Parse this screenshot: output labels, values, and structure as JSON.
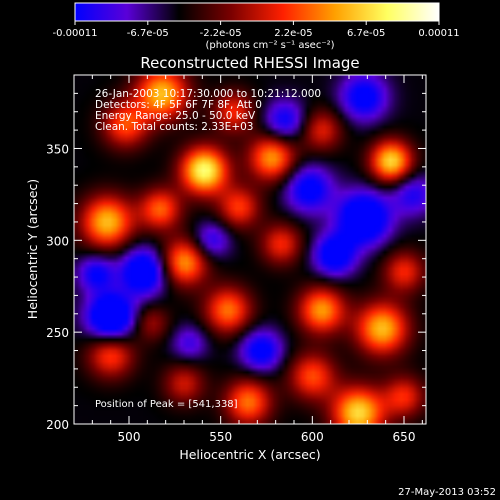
{
  "chart_data": {
    "type": "heatmap",
    "title": "Reconstructed RHESSI Image",
    "xlabel": "Heliocentric X (arcsec)",
    "ylabel": "Heliocentric Y (arcsec)",
    "xlim": [
      470,
      662
    ],
    "ylim": [
      200,
      390
    ],
    "xticks": [
      500,
      550,
      600,
      650
    ],
    "yticks": [
      200,
      250,
      300,
      350
    ],
    "colorbar": {
      "range": [
        -0.00011,
        0.00011
      ],
      "ticks": [
        "-0.00011",
        "-6.7e-05",
        "-2.2e-05",
        "2.2e-05",
        "6.7e-05",
        "0.00011"
      ],
      "units": "(photons cm⁻² s⁻¹ asec⁻²)",
      "colormap": [
        "#0000ff",
        "#5a00d8",
        "#000000",
        "#7a0000",
        "#ff2000",
        "#ffa000",
        "#ffff60",
        "#ffffff"
      ]
    },
    "annotations": [
      "26-Jan-2003 10:17:30.000 to 10:21:12.000",
      "Detectors: 4F 5F 6F 7F 8F, Att 0",
      "Energy Range: 25.0 - 50.0 keV",
      "Clean. Total counts: 2.33E+03"
    ],
    "peak_label": "Position of Peak = [541,338]",
    "sources": [
      {
        "x": 541,
        "y": 338,
        "a": 1.25,
        "s": 9
      },
      {
        "x": 518,
        "y": 380,
        "a": 1.0,
        "s": 10
      },
      {
        "x": 498,
        "y": 363,
        "a": 0.7,
        "s": 9
      },
      {
        "x": 557,
        "y": 370,
        "a": 0.6,
        "s": 8
      },
      {
        "x": 578,
        "y": 345,
        "a": 0.9,
        "s": 9
      },
      {
        "x": 605,
        "y": 360,
        "a": 0.55,
        "s": 8
      },
      {
        "x": 643,
        "y": 343,
        "a": 1.1,
        "s": 8
      },
      {
        "x": 488,
        "y": 310,
        "a": 1.0,
        "s": 10
      },
      {
        "x": 517,
        "y": 317,
        "a": 0.75,
        "s": 8
      },
      {
        "x": 560,
        "y": 318,
        "a": 0.65,
        "s": 8
      },
      {
        "x": 530,
        "y": 288,
        "a": 0.9,
        "s": 9
      },
      {
        "x": 583,
        "y": 298,
        "a": 0.6,
        "s": 8
      },
      {
        "x": 554,
        "y": 262,
        "a": 0.8,
        "s": 9
      },
      {
        "x": 605,
        "y": 262,
        "a": 0.9,
        "s": 9
      },
      {
        "x": 638,
        "y": 252,
        "a": 1.0,
        "s": 10
      },
      {
        "x": 650,
        "y": 283,
        "a": 0.6,
        "s": 8
      },
      {
        "x": 490,
        "y": 238,
        "a": 0.7,
        "s": 9
      },
      {
        "x": 600,
        "y": 226,
        "a": 0.7,
        "s": 9
      },
      {
        "x": 625,
        "y": 206,
        "a": 1.1,
        "s": 10
      },
      {
        "x": 565,
        "y": 212,
        "a": 0.8,
        "s": 9
      },
      {
        "x": 530,
        "y": 222,
        "a": 0.5,
        "s": 8
      },
      {
        "x": 650,
        "y": 215,
        "a": 0.6,
        "s": 8
      },
      {
        "x": 512,
        "y": 255,
        "a": 0.4,
        "s": 7
      },
      {
        "x": 520,
        "y": 340,
        "x2": 0,
        "a": 0.0,
        "s": 1
      },
      {
        "x": 508,
        "y": 283,
        "a": -0.9,
        "s": 9
      },
      {
        "x": 585,
        "y": 365,
        "a": -0.6,
        "s": 8
      },
      {
        "x": 598,
        "y": 328,
        "a": -0.7,
        "s": 9
      },
      {
        "x": 628,
        "y": 312,
        "a": -1.0,
        "s": 10
      },
      {
        "x": 490,
        "y": 258,
        "a": -1.1,
        "s": 9
      },
      {
        "x": 612,
        "y": 292,
        "a": -0.8,
        "s": 8
      },
      {
        "x": 572,
        "y": 240,
        "a": -0.7,
        "s": 8
      },
      {
        "x": 655,
        "y": 325,
        "a": -0.5,
        "s": 8
      },
      {
        "x": 545,
        "y": 300,
        "a": -0.5,
        "s": 7
      },
      {
        "x": 482,
        "y": 282,
        "a": -0.6,
        "s": 7
      },
      {
        "x": 628,
        "y": 378,
        "a": -0.7,
        "s": 9
      },
      {
        "x": 533,
        "y": 244,
        "a": -0.4,
        "s": 7
      }
    ]
  },
  "footer": {
    "timestamp": "27-May-2013 03:52"
  }
}
